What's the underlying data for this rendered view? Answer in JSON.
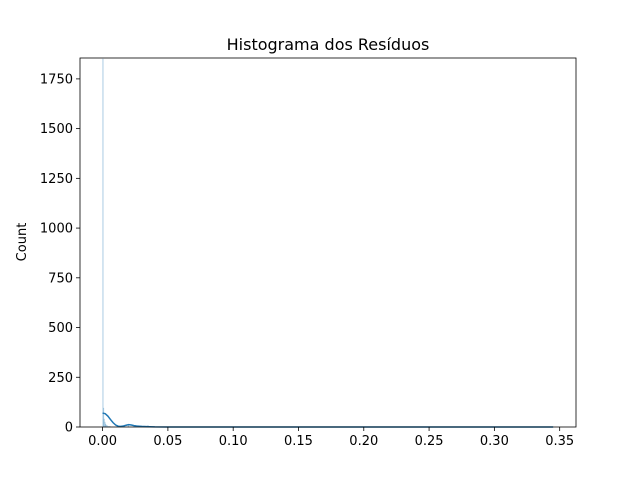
{
  "chart_data": {
    "type": "bar",
    "title": "Histograma dos Resíduos",
    "xlabel": "",
    "ylabel": "Count",
    "xlim": [
      -0.0173,
      0.3625
    ],
    "ylim": [
      0,
      1855
    ],
    "x_ticks": [
      0.0,
      0.05,
      0.1,
      0.15,
      0.2,
      0.25,
      0.3,
      0.35
    ],
    "x_tick_labels": [
      "0.00",
      "0.05",
      "0.10",
      "0.15",
      "0.20",
      "0.25",
      "0.30",
      "0.35"
    ],
    "y_ticks": [
      0,
      250,
      500,
      750,
      1000,
      1250,
      1500,
      1750
    ],
    "y_tick_labels": [
      "0",
      "250",
      "500",
      "750",
      "1000",
      "1250",
      "1500",
      "1750"
    ],
    "grid": false,
    "colors": {
      "bar_fill": "#c6dcec",
      "bar_edge": "#1f77b4",
      "kde_line": "#1f77b4"
    },
    "series": [
      {
        "kind": "histogram",
        "bins": [
          {
            "x0": 0.0,
            "x1": 0.0005,
            "count": 1850
          },
          {
            "x0": 0.0005,
            "x1": 0.001,
            "count": 95
          },
          {
            "x0": 0.001,
            "x1": 0.0015,
            "count": 40
          },
          {
            "x0": 0.0015,
            "x1": 0.002,
            "count": 25
          },
          {
            "x0": 0.002,
            "x1": 0.0025,
            "count": 15
          },
          {
            "x0": 0.0025,
            "x1": 0.003,
            "count": 10
          },
          {
            "x0": 0.003,
            "x1": 0.004,
            "count": 6
          },
          {
            "x0": 0.004,
            "x1": 0.006,
            "count": 3
          },
          {
            "x0": 0.0195,
            "x1": 0.02,
            "count": 12
          },
          {
            "x0": 0.0345,
            "x1": 0.035,
            "count": 8
          },
          {
            "x0": 0.3445,
            "x1": 0.345,
            "count": 1
          }
        ]
      },
      {
        "kind": "kde",
        "x": [
          0.0,
          0.002,
          0.004,
          0.006,
          0.008,
          0.01,
          0.012,
          0.014,
          0.016,
          0.018,
          0.02,
          0.022,
          0.024,
          0.026,
          0.028,
          0.03,
          0.034,
          0.036,
          0.04,
          0.05,
          0.1,
          0.15,
          0.2,
          0.25,
          0.3,
          0.345
        ],
        "y": [
          70,
          67,
          55,
          38,
          22,
          10,
          4,
          3,
          5,
          9,
          12,
          10,
          7,
          5,
          4,
          3,
          2,
          1.5,
          0.5,
          0.2,
          0.05,
          0.05,
          0.05,
          0.05,
          0.05,
          0.05
        ]
      }
    ]
  }
}
